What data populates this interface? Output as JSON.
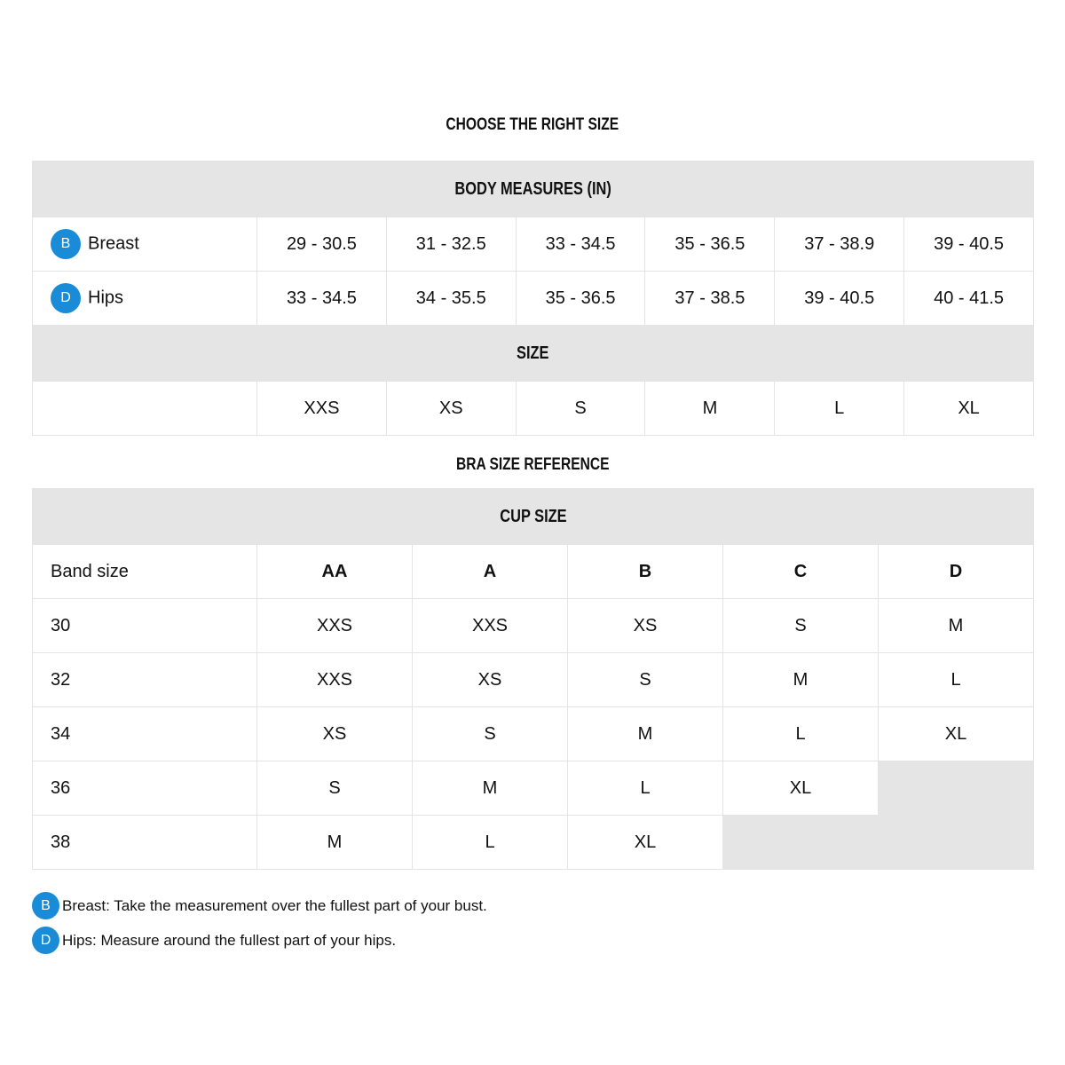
{
  "title": "CHOOSE THE RIGHT SIZE",
  "accent_color": "#1a8bd6",
  "body_measures": {
    "header": "BODY MEASURES (IN)",
    "rows": [
      {
        "badge": "B",
        "label": "Breast",
        "values": [
          "29 - 30.5",
          "31 - 32.5",
          "33 - 34.5",
          "35 - 36.5",
          "37 - 38.9",
          "39 - 40.5"
        ]
      },
      {
        "badge": "D",
        "label": "Hips",
        "values": [
          "33 - 34.5",
          "34 - 35.5",
          "35 - 36.5",
          "37 - 38.5",
          "39 - 40.5",
          "40 - 41.5"
        ]
      }
    ],
    "size_header": "SIZE",
    "sizes": [
      "XXS",
      "XS",
      "S",
      "M",
      "L",
      "XL"
    ]
  },
  "bra_reference": {
    "title": "BRA SIZE REFERENCE",
    "header": "CUP SIZE",
    "band_label": "Band size",
    "cups": [
      "AA",
      "A",
      "B",
      "C",
      "D"
    ],
    "rows": [
      {
        "band": "30",
        "values": [
          "XXS",
          "XXS",
          "XS",
          "S",
          "M"
        ]
      },
      {
        "band": "32",
        "values": [
          "XXS",
          "XS",
          "S",
          "M",
          "L"
        ]
      },
      {
        "band": "34",
        "values": [
          "XS",
          "S",
          "M",
          "L",
          "XL"
        ]
      },
      {
        "band": "36",
        "values": [
          "S",
          "M",
          "L",
          "XL",
          null
        ]
      },
      {
        "band": "38",
        "values": [
          "M",
          "L",
          "XL",
          null,
          null
        ]
      }
    ]
  },
  "notes": [
    {
      "badge": "B",
      "text": "Breast: Take the measurement over the fullest part of your bust."
    },
    {
      "badge": "D",
      "text": "Hips: Measure around the fullest part of your hips."
    }
  ]
}
